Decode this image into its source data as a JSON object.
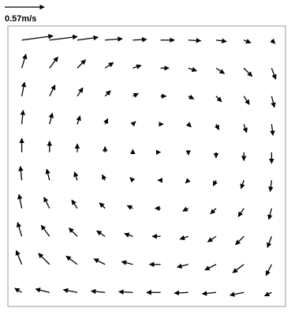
{
  "chart_data": {
    "type": "quiver",
    "scale_arrow": {
      "value": 0.57,
      "label": "0.57m/s"
    },
    "color": "#000000",
    "x": [
      0.05,
      0.15,
      0.25,
      0.35,
      0.45,
      0.55,
      0.65,
      0.75,
      0.85,
      0.95
    ],
    "y": [
      0.95,
      0.85,
      0.75,
      0.65,
      0.55,
      0.45,
      0.35,
      0.25,
      0.15,
      0.05
    ],
    "xlim": [
      0,
      1
    ],
    "ylim": [
      0,
      1
    ],
    "u": [
      [
        0.45,
        0.4,
        0.3,
        0.25,
        0.2,
        0.2,
        0.18,
        0.15,
        0.1,
        0.05
      ],
      [
        0.06,
        0.12,
        0.12,
        0.12,
        0.12,
        0.12,
        0.12,
        0.12,
        0.12,
        0.06
      ],
      [
        0.04,
        0.08,
        0.08,
        0.08,
        0.08,
        0.08,
        0.08,
        0.08,
        0.08,
        0.04
      ],
      [
        0.02,
        0.04,
        0.04,
        0.04,
        0.04,
        0.04,
        0.04,
        0.04,
        0.04,
        0.02
      ],
      [
        0,
        0,
        0,
        0,
        0,
        0,
        0,
        0,
        0,
        0
      ],
      [
        -0.02,
        -0.04,
        -0.04,
        -0.04,
        -0.04,
        -0.04,
        -0.04,
        -0.04,
        -0.04,
        -0.02
      ],
      [
        -0.04,
        -0.08,
        -0.08,
        -0.08,
        -0.08,
        -0.08,
        -0.08,
        -0.08,
        -0.08,
        -0.04
      ],
      [
        -0.06,
        -0.12,
        -0.12,
        -0.12,
        -0.12,
        -0.12,
        -0.12,
        -0.12,
        -0.12,
        -0.06
      ],
      [
        -0.08,
        -0.16,
        -0.16,
        -0.16,
        -0.16,
        -0.16,
        -0.16,
        -0.16,
        -0.16,
        -0.08
      ],
      [
        -0.1,
        -0.2,
        -0.2,
        -0.2,
        -0.2,
        -0.2,
        -0.2,
        -0.2,
        -0.2,
        -0.1
      ]
    ],
    "v": [
      [
        0.06,
        0.05,
        0.04,
        0.02,
        0.01,
        0,
        -0.01,
        -0.02,
        -0.04,
        -0.05
      ],
      [
        0.2,
        0.16,
        0.12,
        0.08,
        0.04,
        0,
        -0.04,
        -0.08,
        -0.12,
        -0.16
      ],
      [
        0.2,
        0.16,
        0.12,
        0.08,
        0.04,
        0,
        -0.04,
        -0.08,
        -0.12,
        -0.16
      ],
      [
        0.2,
        0.16,
        0.12,
        0.08,
        0.04,
        0,
        -0.04,
        -0.08,
        -0.12,
        -0.16
      ],
      [
        0.2,
        0.16,
        0.12,
        0.08,
        0.04,
        0,
        -0.04,
        -0.08,
        -0.12,
        -0.16
      ],
      [
        0.2,
        0.16,
        0.12,
        0.08,
        0.04,
        0,
        -0.04,
        -0.08,
        -0.12,
        -0.16
      ],
      [
        0.2,
        0.16,
        0.12,
        0.08,
        0.04,
        0,
        -0.04,
        -0.08,
        -0.12,
        -0.16
      ],
      [
        0.2,
        0.16,
        0.12,
        0.08,
        0.04,
        0,
        -0.04,
        -0.08,
        -0.12,
        -0.16
      ],
      [
        0.2,
        0.16,
        0.12,
        0.08,
        0.04,
        0,
        -0.04,
        -0.08,
        -0.12,
        -0.16
      ],
      [
        0.06,
        0.05,
        0.04,
        0.02,
        0.01,
        0,
        -0.01,
        -0.02,
        -0.04,
        -0.05
      ]
    ]
  }
}
